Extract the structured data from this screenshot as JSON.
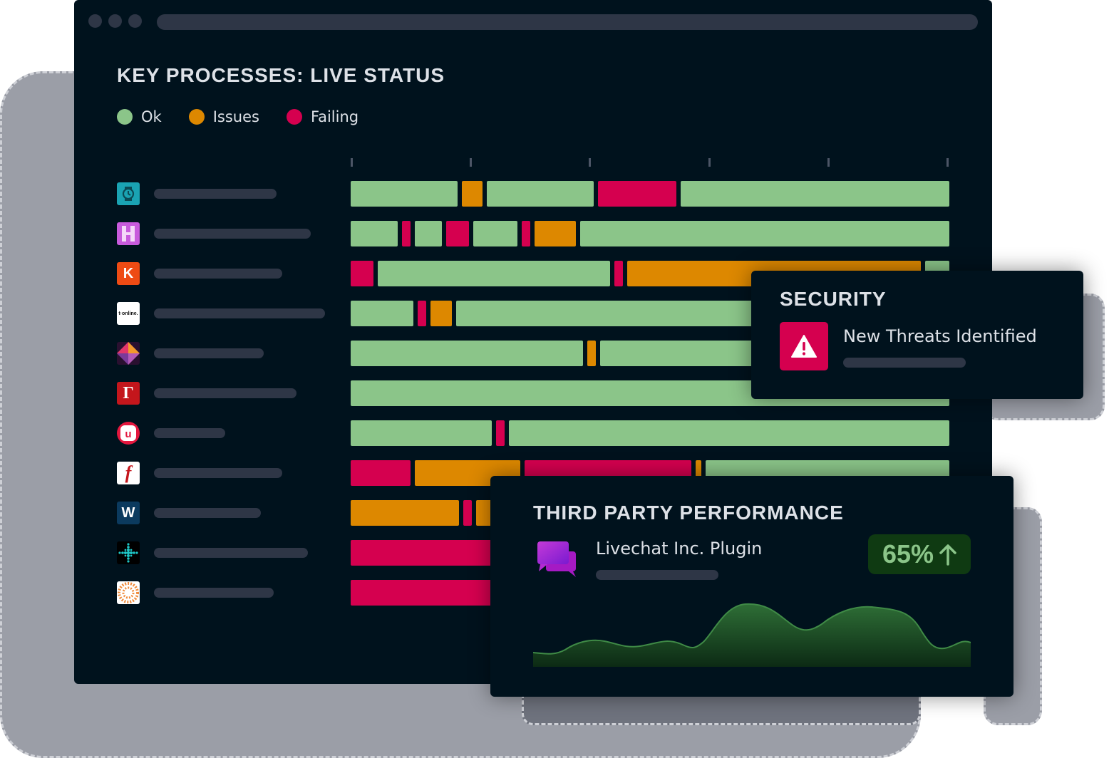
{
  "dashboard": {
    "title": "KEY PROCESSES: LIVE STATUS"
  },
  "legend": [
    {
      "label": "Ok",
      "color": "#8bc589"
    },
    {
      "label": "Issues",
      "color": "#dd8800"
    },
    {
      "label": "Failing",
      "color": "#d5004f"
    }
  ],
  "colors": {
    "ok": "#8bc589",
    "issues": "#dd8800",
    "failing": "#d5004f",
    "background": "#00121d"
  },
  "processes": [
    {
      "icon": "watch-icon"
    },
    {
      "icon": "h-logo-icon"
    },
    {
      "icon": "k-logo-icon"
    },
    {
      "icon": "t-online-logo-icon"
    },
    {
      "icon": "kite-logo-icon"
    },
    {
      "icon": "r-logo-icon"
    },
    {
      "icon": "n-logo-icon"
    },
    {
      "icon": "f-logo-icon"
    },
    {
      "icon": "w-logo-icon"
    },
    {
      "icon": "dot-grid-logo-icon"
    },
    {
      "icon": "sunburst-logo-icon"
    }
  ],
  "security": {
    "title": "SECURITY",
    "alert_text": "New Threats Identified",
    "icon": "warning-icon"
  },
  "third_party": {
    "title": "THIRD PARTY PERFORMANCE",
    "plugin_name": "Livechat Inc. Plugin",
    "plugin_icon": "chat-bubbles-icon",
    "percent": "65%",
    "trend_icon": "arrow-up-icon"
  }
}
